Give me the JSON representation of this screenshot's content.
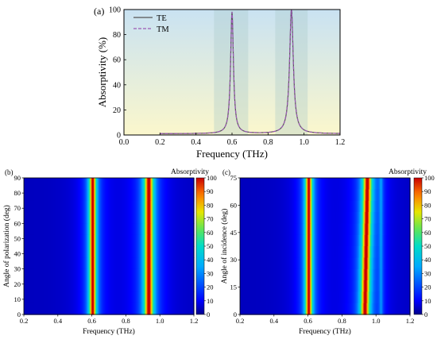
{
  "chart_data": [
    {
      "panel": "(a)",
      "type": "line",
      "xlabel": "Frequency (THz)",
      "ylabel": "Absorptivity (%)",
      "xlim": [
        0.0,
        1.2
      ],
      "ylim": [
        0,
        100
      ],
      "xticks": [
        "0.0",
        "0.2",
        "0.4",
        "0.6",
        "0.8",
        "1.0",
        "1.2"
      ],
      "yticks": [
        "0",
        "20",
        "40",
        "60",
        "80",
        "100"
      ],
      "legend_position": "top-left",
      "series": [
        {
          "name": "TE",
          "color": "#555555",
          "style": "solid",
          "x": [
            0.2,
            0.3,
            0.4,
            0.5,
            0.55,
            0.58,
            0.595,
            0.605,
            0.62,
            0.65,
            0.7,
            0.8,
            0.88,
            0.91,
            0.925,
            0.935,
            0.95,
            0.98,
            1.05,
            1.15,
            1.2
          ],
          "y": [
            1,
            1,
            1.5,
            3,
            8,
            30,
            95,
            95,
            40,
            12,
            6,
            8,
            25,
            60,
            99,
            95,
            50,
            18,
            7,
            3,
            2
          ]
        },
        {
          "name": "TM",
          "color": "#9b59b6",
          "style": "dashed",
          "x": [
            0.2,
            0.3,
            0.4,
            0.5,
            0.55,
            0.58,
            0.595,
            0.605,
            0.62,
            0.65,
            0.7,
            0.8,
            0.88,
            0.91,
            0.925,
            0.935,
            0.95,
            0.98,
            1.05,
            1.15,
            1.2
          ],
          "y": [
            1,
            1,
            1.5,
            3,
            8,
            30,
            95,
            95,
            40,
            12,
            6,
            8,
            25,
            60,
            99,
            95,
            50,
            18,
            7,
            3,
            2
          ]
        }
      ],
      "background": {
        "upper": "#c9e2f2",
        "lower": "#fbf7cc"
      },
      "shaded_bands": [
        [
          0.5,
          0.69
        ],
        [
          0.84,
          1.02
        ]
      ]
    },
    {
      "panel": "(b)",
      "type": "heatmap",
      "title": "Absorptivity",
      "xlabel": "Frequency (THz)",
      "ylabel": "Angle of polarization (deg)",
      "xlim": [
        0.2,
        1.2
      ],
      "ylim": [
        0,
        90
      ],
      "xticks": [
        "0.2",
        "0.4",
        "0.6",
        "0.8",
        "1.0",
        "1.2"
      ],
      "yticks": [
        "0",
        "10",
        "20",
        "30",
        "40",
        "50",
        "60",
        "70",
        "80",
        "90"
      ],
      "colorbar_ticks": [
        "0",
        "10",
        "20",
        "30",
        "40",
        "50",
        "60",
        "70",
        "80",
        "90",
        "100"
      ],
      "peaks": [
        {
          "center": 0.605,
          "width": 0.02,
          "value": 97
        },
        {
          "center": 0.935,
          "width": 0.026,
          "value": 99
        }
      ],
      "angle_dependence": "none"
    },
    {
      "panel": "(c)",
      "type": "heatmap",
      "title": "Absorptivity",
      "xlabel": "Frequency (THz)",
      "ylabel": "Angle of incidence (deg)",
      "xlim": [
        0.2,
        1.2
      ],
      "ylim": [
        0,
        75
      ],
      "xticks": [
        "0.2",
        "0.4",
        "0.6",
        "0.8",
        "1.0",
        "1.2"
      ],
      "yticks": [
        "0",
        "15",
        "30",
        "45",
        "60",
        "75"
      ],
      "colorbar_ticks": [
        "0",
        "10",
        "20",
        "30",
        "40",
        "50",
        "60",
        "70",
        "80",
        "90",
        "100"
      ],
      "peaks": [
        {
          "center": 0.605,
          "width": 0.02,
          "value": 97
        },
        {
          "center": 0.935,
          "width": 0.026,
          "value": 98
        },
        {
          "center": 1.03,
          "width": 0.012,
          "value": 20
        }
      ],
      "angle_dependence": "second peak shifts from about 0.935 THz at 0° to 0.95 THz at 75°"
    }
  ]
}
